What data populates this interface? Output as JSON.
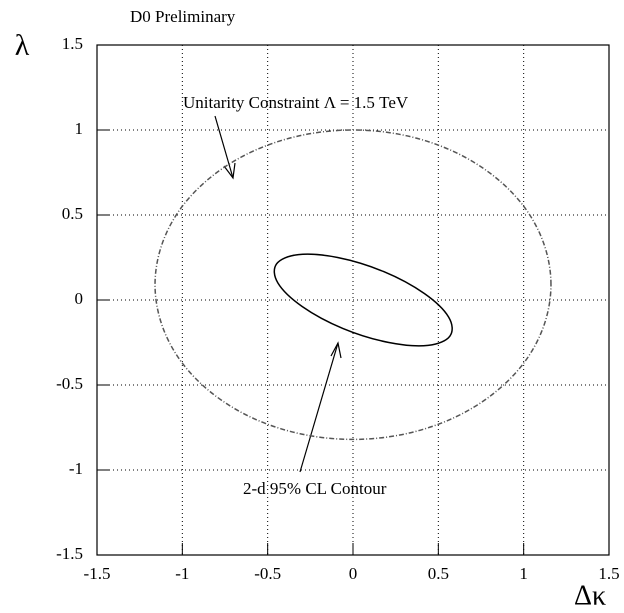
{
  "chart_data": {
    "type": "line",
    "title": "D0 Preliminary",
    "x_label": "Δκ",
    "y_label": "λ",
    "xlim": [
      -1.5,
      1.5
    ],
    "ylim": [
      -1.5,
      1.5
    ],
    "xticks": [
      -1.5,
      -1,
      -0.5,
      0,
      0.5,
      1,
      1.5
    ],
    "yticks": [
      -1.5,
      -1,
      -0.5,
      0,
      0.5,
      1,
      1.5
    ],
    "grid": true,
    "annotations": [
      "Unitarity Constraint Λ = 1.5 TeV",
      "2-d 95% CL Contour"
    ],
    "series": [
      {
        "name": "Unitarity Constraint Λ = 1.5 TeV",
        "color": "#555555",
        "style": "dashed",
        "x": [
          1.16,
          1.12,
          1.005,
          0.82,
          0.58,
          0.3,
          0,
          -0.3,
          -0.58,
          -0.82,
          -1.005,
          -1.12,
          -1.16,
          -1.12,
          -1.005,
          -0.82,
          -0.58,
          -0.3,
          0,
          0.3,
          0.58,
          0.82,
          1.005,
          1.12,
          1.16
        ],
        "values": [
          0.09,
          0.326,
          0.545,
          0.733,
          0.878,
          0.969,
          1.0,
          0.969,
          0.878,
          0.733,
          0.545,
          0.326,
          0.09,
          -0.146,
          -0.365,
          -0.553,
          -0.698,
          -0.789,
          -0.82,
          -0.789,
          -0.698,
          -0.553,
          -0.365,
          -0.146,
          0.09
        ]
      },
      {
        "name": "2-d 95% CL Contour",
        "color": "#000000",
        "style": "solid",
        "x": [
          0.56,
          0.418,
          0.18,
          -0.09,
          -0.32,
          -0.448,
          -0.44,
          -0.298,
          -0.06,
          0.21,
          0.44,
          0.568,
          0.56
        ],
        "values": [
          -0.1,
          0.038,
          0.167,
          0.25,
          0.267,
          0.212,
          0.1,
          -0.038,
          -0.167,
          -0.25,
          -0.267,
          -0.212,
          -0.1
        ]
      }
    ]
  }
}
